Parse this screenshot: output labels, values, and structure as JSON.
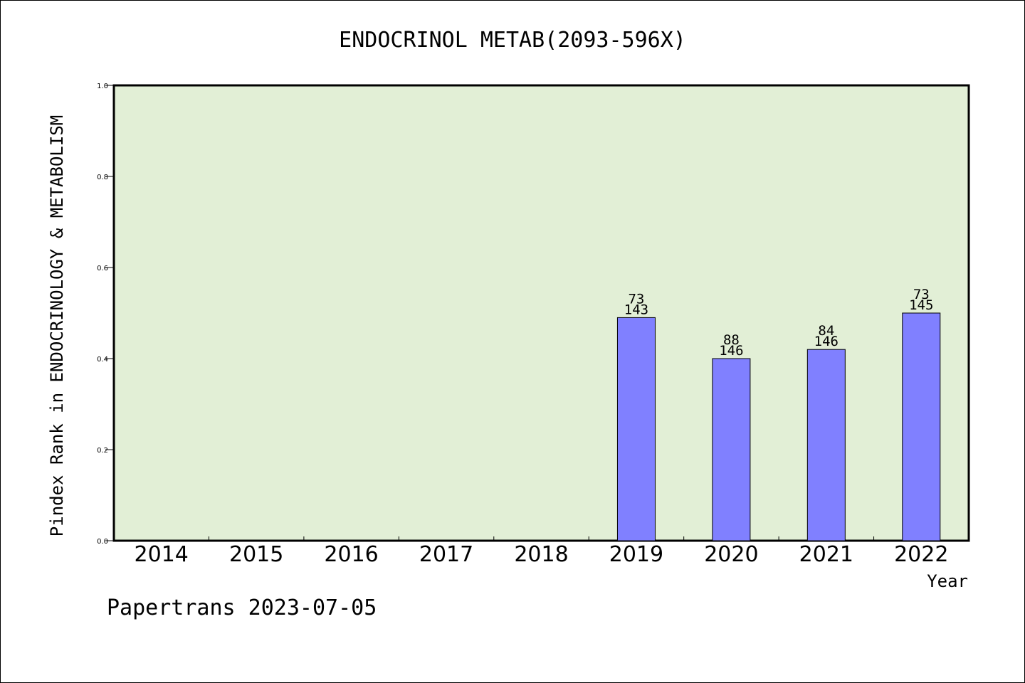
{
  "chart_data": {
    "type": "bar",
    "title": "ENDOCRINOL METAB(2093-596X)",
    "xlabel": "Year",
    "ylabel": "Pindex Rank in ENDOCRINOLOGY & METABOLISM",
    "ylim": [
      0,
      1.0
    ],
    "yticks": [
      "0.0",
      "0.2",
      "0.4",
      "0.6",
      "0.8",
      "1.0"
    ],
    "categories": [
      "2014",
      "2015",
      "2016",
      "2017",
      "2018",
      "2019",
      "2020",
      "2021",
      "2022"
    ],
    "values": [
      null,
      null,
      null,
      null,
      null,
      0.49,
      0.4,
      0.42,
      0.5
    ],
    "labels_top": [
      "",
      "",
      "",
      "",
      "",
      "73",
      "88",
      "84",
      "73"
    ],
    "labels_bottom": [
      "",
      "",
      "",
      "",
      "",
      "143",
      "146",
      "146",
      "145"
    ],
    "grid": false,
    "colors": {
      "plot_background": "#e2efd6",
      "bar_fill": "#8080ff",
      "axis": "#000000"
    }
  },
  "footer": {
    "credit": "Papertrans 2023-07-05"
  }
}
